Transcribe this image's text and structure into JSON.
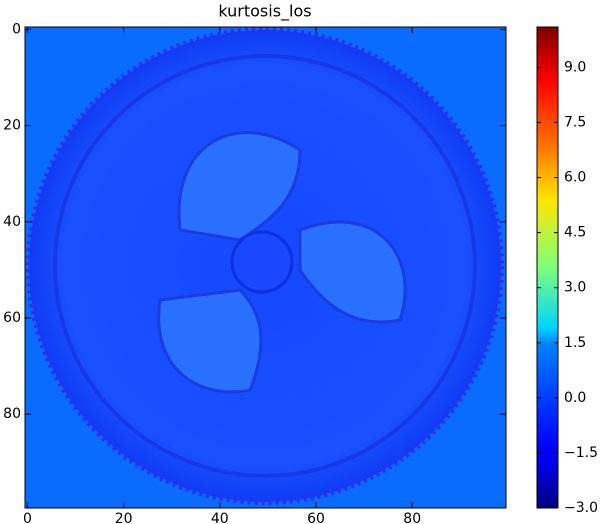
{
  "chart_data": {
    "type": "heatmap",
    "title": "kurtosis_los",
    "xlim": [
      -0.5,
      99.5
    ],
    "ylim": [
      99.5,
      -0.5
    ],
    "xticks": [
      0,
      20,
      40,
      60,
      80
    ],
    "yticks": [
      0,
      20,
      40,
      60,
      80
    ],
    "colormap": "jet",
    "colorbar_lim": [
      -3.0,
      10.1
    ],
    "colorbar_ticks": [
      {
        "value": -3.0,
        "label": "−3.0"
      },
      {
        "value": -1.5,
        "label": "−1.5"
      },
      {
        "value": 0.0,
        "label": "0.0"
      },
      {
        "value": 1.5,
        "label": "1.5"
      },
      {
        "value": 3.0,
        "label": "3.0"
      },
      {
        "value": 4.5,
        "label": "4.5"
      },
      {
        "value": 6.0,
        "label": "6.0"
      },
      {
        "value": 7.5,
        "label": "7.5"
      },
      {
        "value": 9.0,
        "label": "9.0"
      }
    ]
  }
}
